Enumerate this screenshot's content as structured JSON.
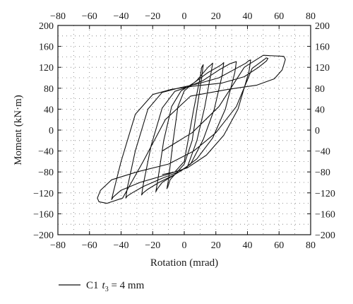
{
  "chart_data": {
    "type": "line",
    "title": "",
    "xlabel": "Rotation (mrad)",
    "ylabel": "Moment (kN·m)",
    "xlim": [
      -80,
      80
    ],
    "ylim": [
      -200,
      200
    ],
    "xticks": [
      -80,
      -60,
      -40,
      -20,
      0,
      20,
      40,
      60,
      80
    ],
    "yticks": [
      -200,
      -160,
      -120,
      -80,
      -40,
      0,
      40,
      80,
      120,
      160,
      200
    ],
    "x_ticks_top": true,
    "y_ticks_right": true,
    "grid": "dotted",
    "legend_position": "bottom-left",
    "series": [
      {
        "legend": {
          "name": "C1",
          "symbol": "t",
          "subscript": "3",
          "value": " = 4 mm"
        },
        "color": "#111111",
        "x": [
          -14,
          -6,
          0,
          6,
          10,
          11,
          12,
          11,
          8,
          5,
          0,
          -6,
          -9,
          -10,
          -11,
          -10,
          -7,
          -4,
          0,
          8,
          15,
          17,
          18,
          17,
          13,
          8,
          2,
          -6,
          -14,
          -17,
          -18,
          -17,
          -13,
          -8,
          -2,
          6,
          15,
          22,
          24,
          25,
          24,
          19,
          12,
          4,
          -6,
          -16,
          -23,
          -26,
          -27,
          -26,
          -21,
          -14,
          -6,
          2,
          12,
          22,
          29,
          32,
          33,
          32,
          26,
          18,
          8,
          -2,
          -14,
          -26,
          -33,
          -36,
          -37,
          -36,
          -31,
          -23,
          -14,
          -4,
          8,
          22,
          33,
          39,
          41,
          42,
          41,
          34,
          25,
          14,
          2,
          -12,
          -28,
          -40,
          -45,
          -46,
          -45,
          -40,
          -31,
          -20,
          -8,
          6,
          24,
          38,
          47,
          52,
          53,
          52,
          43,
          33,
          20,
          6,
          -10,
          -30,
          -46,
          -53,
          -55,
          -54,
          -49,
          -39,
          -26,
          -12,
          4,
          28,
          46,
          57,
          62,
          64,
          63,
          50,
          38,
          22,
          5,
          -14
        ],
        "y": [
          -85,
          -80,
          -60,
          40,
          100,
          120,
          125,
          100,
          40,
          -20,
          -65,
          -85,
          -95,
          -105,
          -112,
          -95,
          -20,
          45,
          75,
          95,
          120,
          125,
          128,
          110,
          45,
          -20,
          -70,
          -85,
          -100,
          -112,
          -118,
          -100,
          -20,
          45,
          75,
          90,
          110,
          122,
          126,
          129,
          105,
          40,
          -18,
          -65,
          -85,
          -100,
          -113,
          -120,
          -124,
          -105,
          -30,
          42,
          74,
          82,
          95,
          115,
          127,
          130,
          131,
          110,
          40,
          -15,
          -55,
          -78,
          -92,
          -108,
          -120,
          -126,
          -130,
          -110,
          -40,
          40,
          72,
          80,
          88,
          100,
          118,
          128,
          133,
          134,
          112,
          40,
          -10,
          -48,
          -72,
          -86,
          -100,
          -115,
          -128,
          -133,
          -120,
          -60,
          30,
          68,
          78,
          84,
          90,
          102,
          120,
          132,
          137,
          138,
          118,
          45,
          -5,
          -40,
          -65,
          -80,
          -95,
          -115,
          -130,
          -137,
          -140,
          -130,
          -60,
          20,
          65,
          78,
          86,
          98,
          115,
          135,
          141,
          143,
          120,
          45,
          -5,
          -40
        ]
      }
    ]
  }
}
